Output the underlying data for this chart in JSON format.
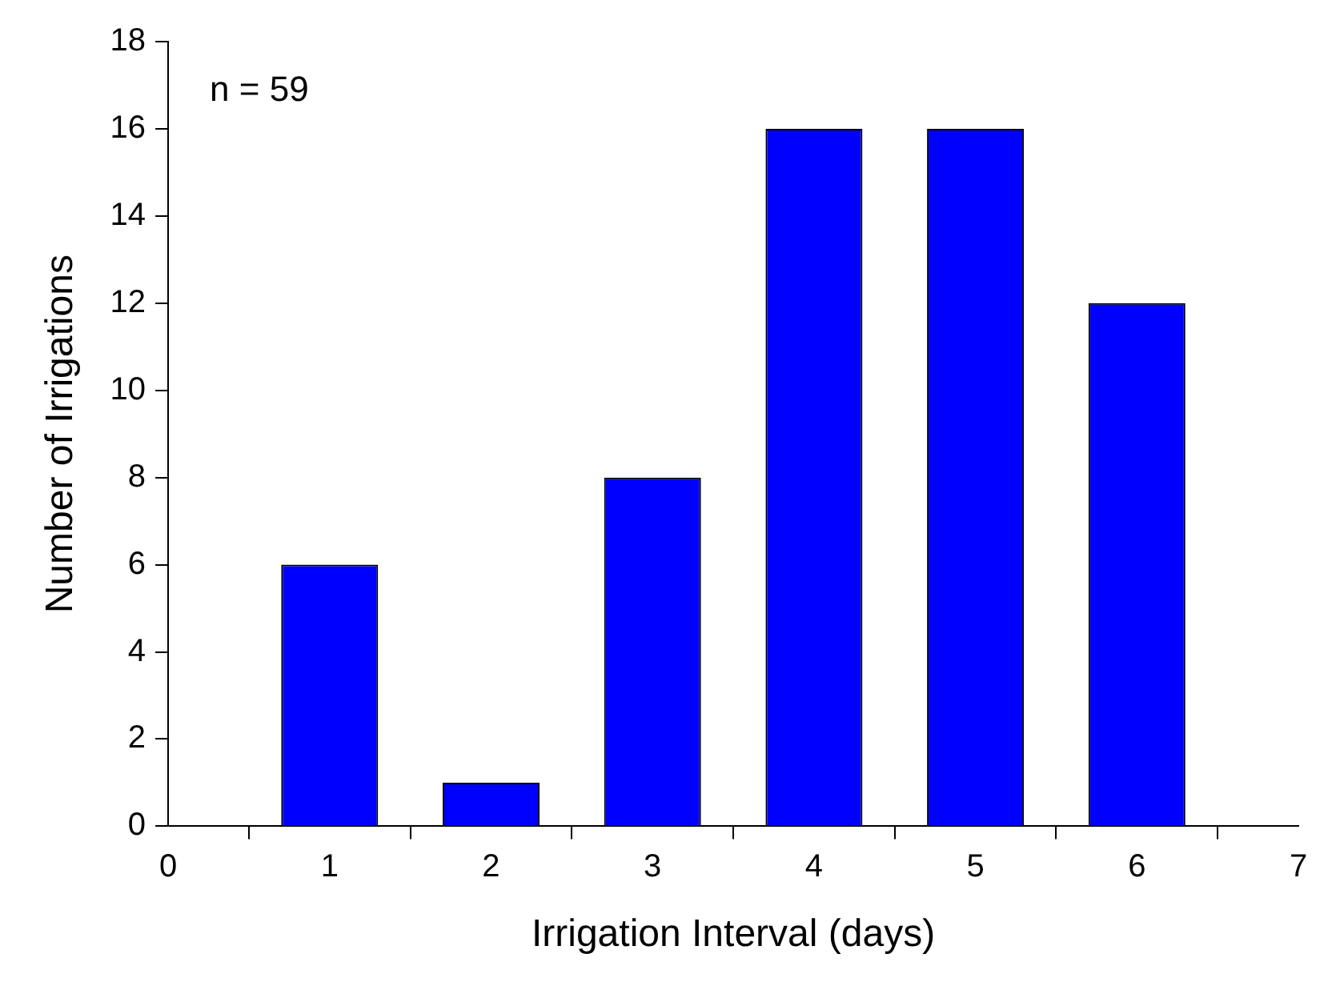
{
  "chart_data": {
    "type": "bar",
    "xlabel": "Irrigation Interval (days)",
    "ylabel": "Number of Irrigations",
    "annotations": [
      "n = 59"
    ],
    "x": [
      1,
      2,
      3,
      4,
      5,
      6
    ],
    "values": [
      6,
      1,
      8,
      16,
      16,
      12
    ],
    "color": "#0000ff",
    "xlim": [
      0,
      7
    ],
    "xticks": [
      0,
      1,
      2,
      3,
      4,
      5,
      6,
      7
    ],
    "ylim": [
      0,
      18
    ],
    "yticks": [
      0,
      2,
      4,
      6,
      8,
      10,
      12,
      14,
      16,
      18
    ],
    "grid": false,
    "legend": false
  }
}
